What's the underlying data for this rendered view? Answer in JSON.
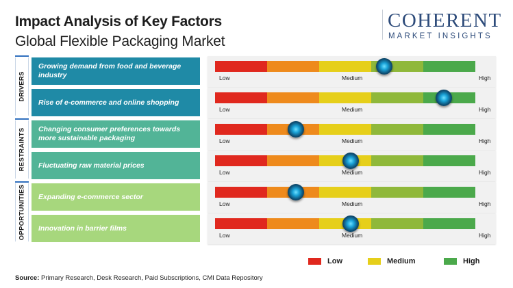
{
  "header": {
    "title": "Impact Analysis of Key Factors",
    "subtitle": "Global Flexible Packaging Market"
  },
  "logo": {
    "name": "COHERENT",
    "tagline": "MARKET INSIGHTS"
  },
  "scale": {
    "low": "Low",
    "medium": "Medium",
    "high": "High",
    "segment_colors": [
      "#e0281e",
      "#ee8a1c",
      "#e6cf1a",
      "#8fb83a",
      "#4ba94b"
    ]
  },
  "groups": [
    {
      "label": "DRIVERS",
      "style": "driver",
      "factors": [
        {
          "text": "Growing demand from food and beverage industry",
          "impact_level": 0.65
        },
        {
          "text": "Rise of e-commerce and online shopping",
          "impact_level": 0.88
        }
      ]
    },
    {
      "label": "RESTRAINTS",
      "style": "restraint",
      "factors": [
        {
          "text": "Changing consumer preferences towards more sustainable packaging",
          "impact_level": 0.31
        },
        {
          "text": "Fluctuating raw material prices",
          "impact_level": 0.52
        }
      ]
    },
    {
      "label": "OPPORTUNITIES",
      "style": "opportunity",
      "factors": [
        {
          "text": "Expanding e-commerce sector",
          "impact_level": 0.31
        },
        {
          "text": "Innovation in barrier films",
          "impact_level": 0.52
        }
      ]
    }
  ],
  "legend": [
    {
      "label": "Low",
      "color": "#e0281e"
    },
    {
      "label": "Medium",
      "color": "#e6cf1a"
    },
    {
      "label": "High",
      "color": "#4ba94b"
    }
  ],
  "source": {
    "prefix": "Source:",
    "text": " Primary Research, Desk Research, Paid Subscriptions, CMI Data Repository"
  }
}
